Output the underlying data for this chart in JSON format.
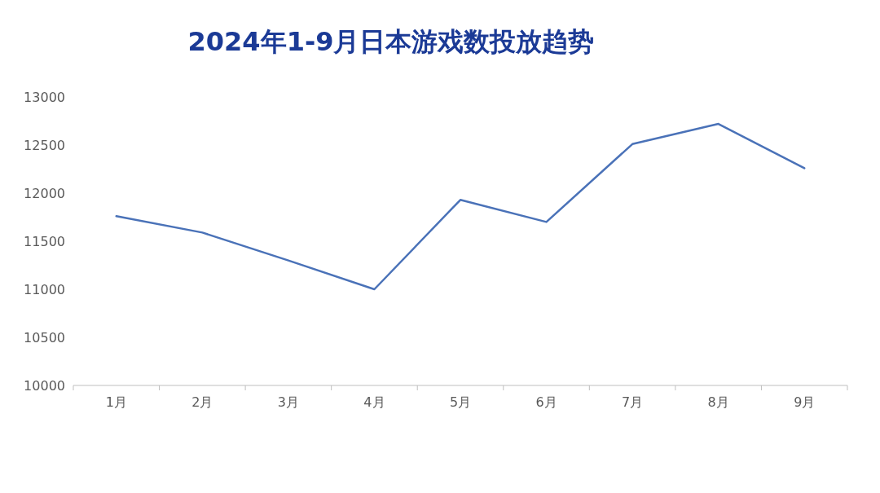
{
  "chart_data": {
    "type": "line",
    "title": "2024年1-9月日本游戏数投放趋势",
    "categories": [
      "1月",
      "2月",
      "3月",
      "4月",
      "5月",
      "6月",
      "7月",
      "8月",
      "9月"
    ],
    "values": [
      11760,
      11590,
      11300,
      11000,
      11930,
      11700,
      12510,
      12720,
      12260
    ],
    "color": "#4a72b8",
    "ylim": [
      10000,
      13000
    ],
    "yticks": [
      10000,
      10500,
      11000,
      11500,
      12000,
      12500,
      13000
    ]
  }
}
